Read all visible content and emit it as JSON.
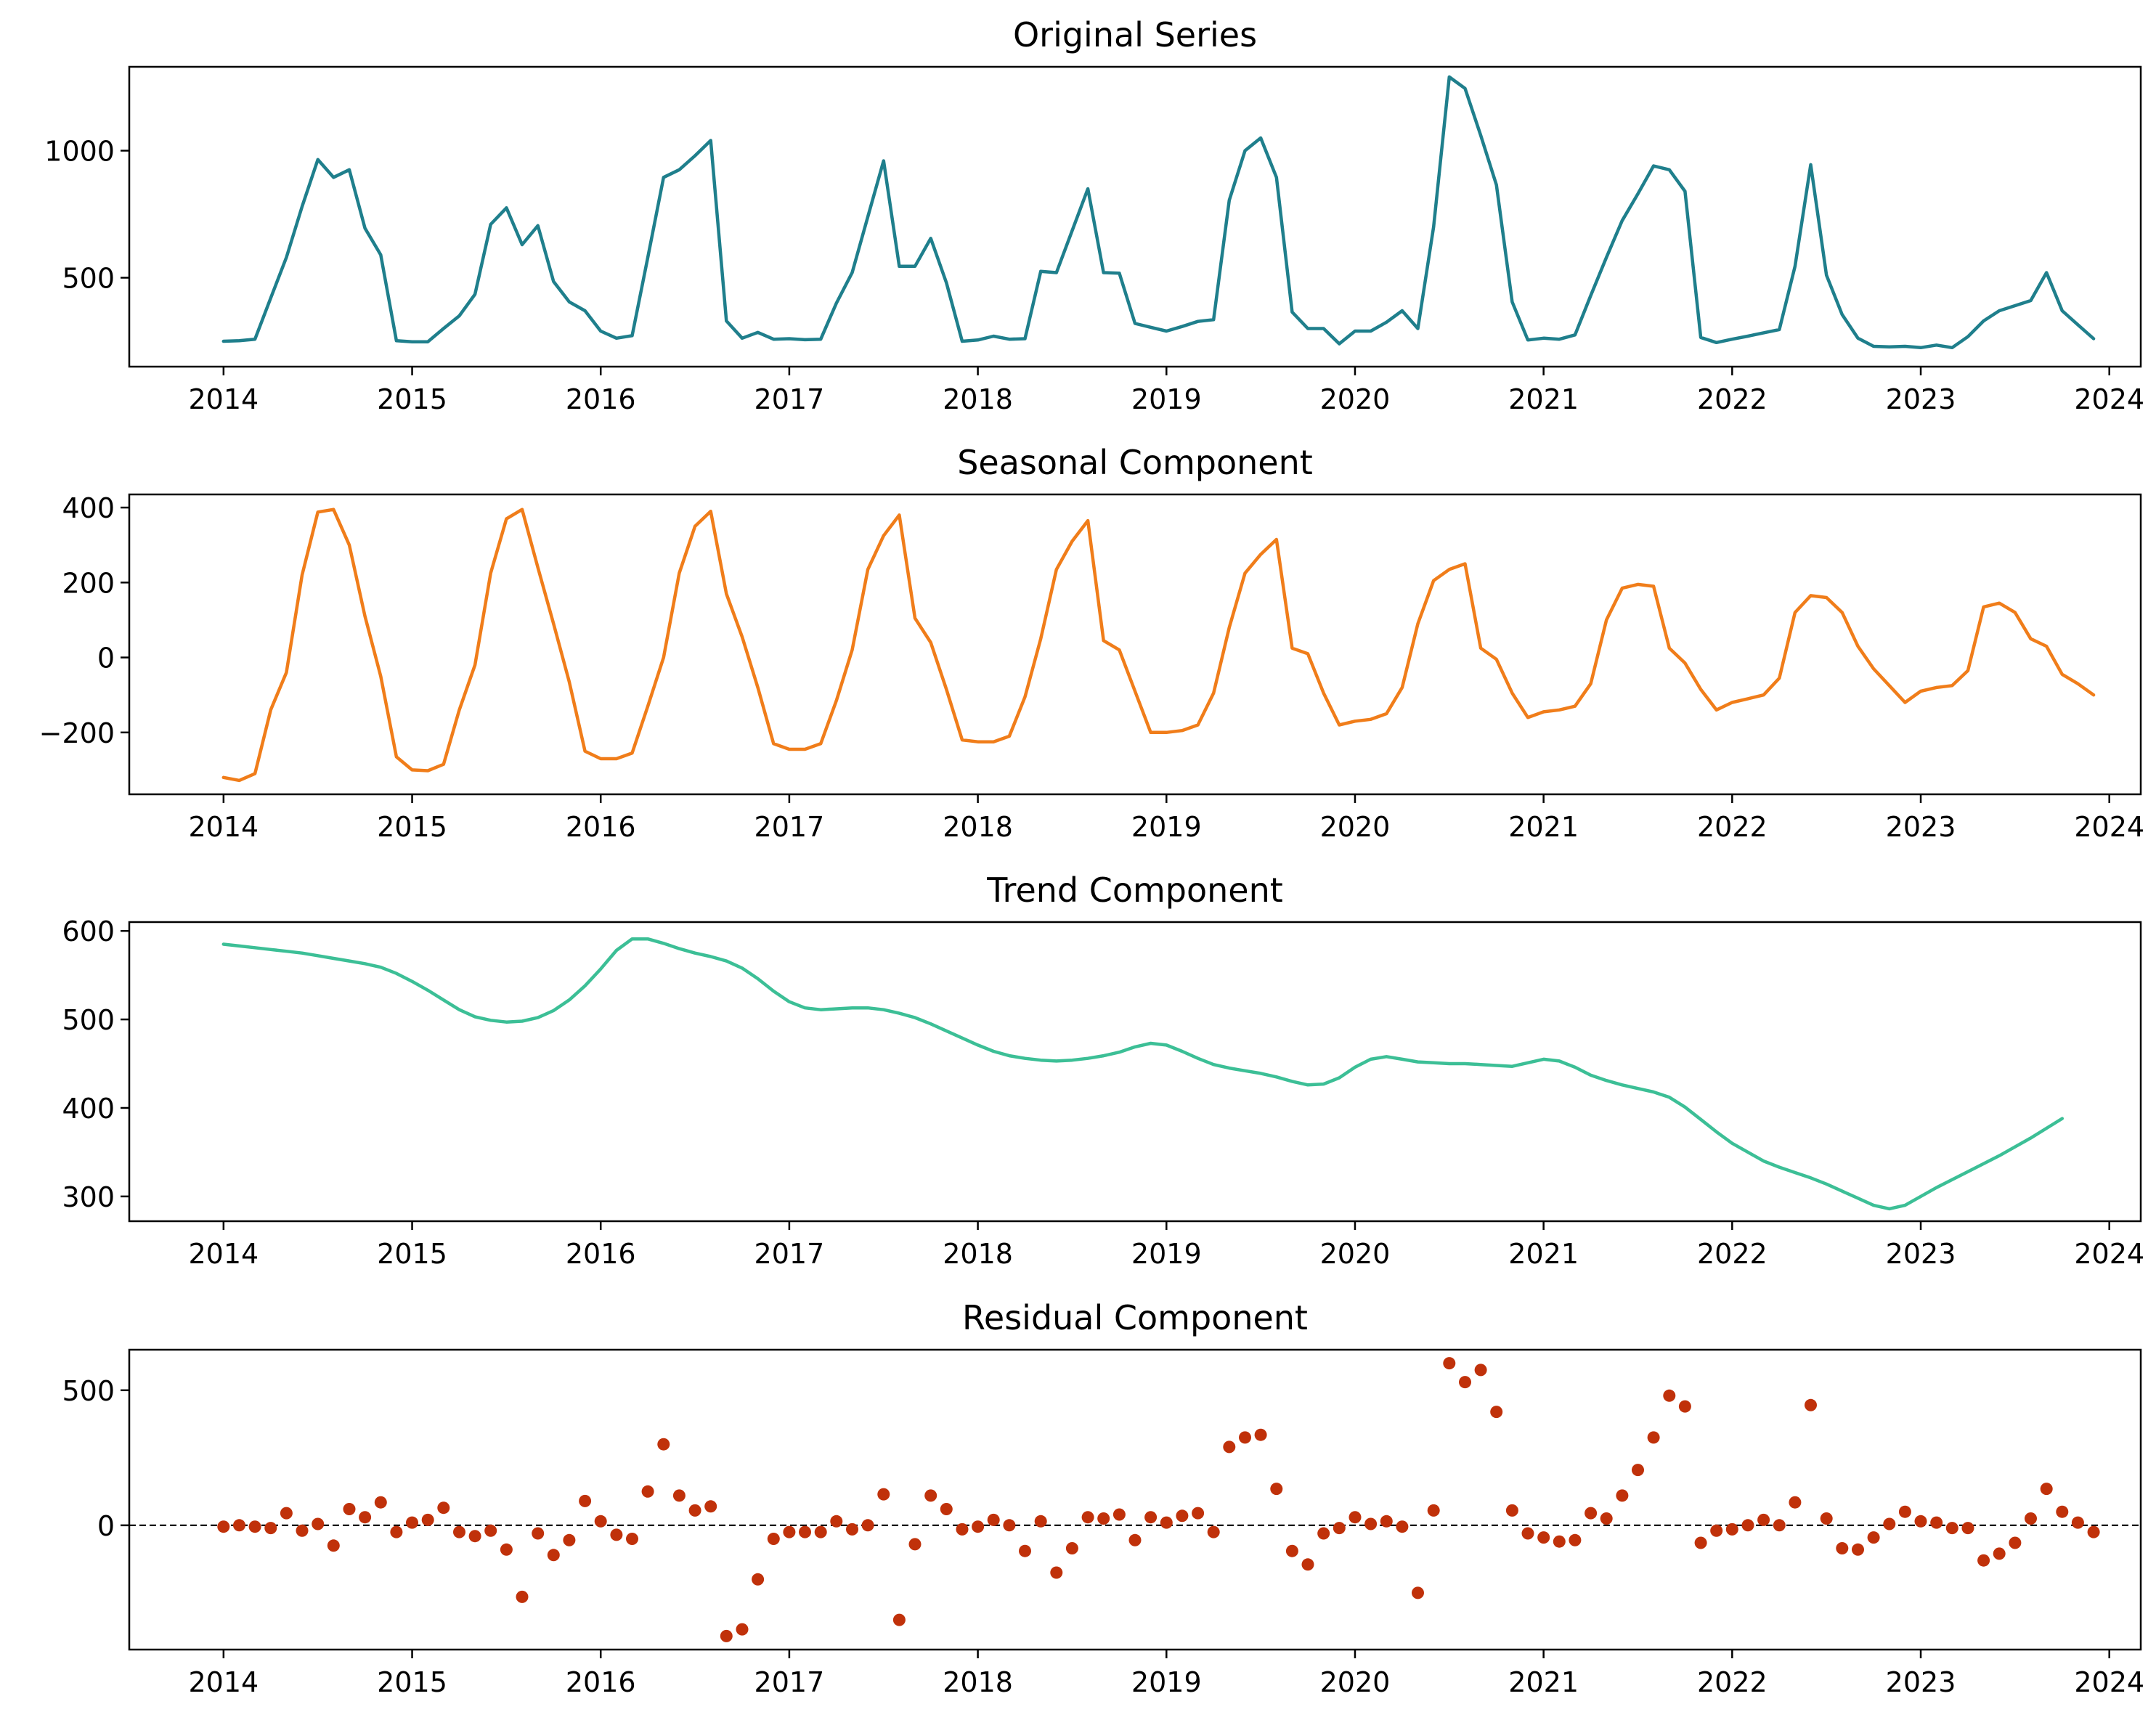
{
  "chart_data": [
    {
      "type": "line",
      "title": "Original Series",
      "xlabel": "",
      "ylabel": "",
      "color": "#1f7f8c",
      "x_start": "2014-01",
      "x_step": "1 month",
      "xlim": [
        "2013-07",
        "2024-03"
      ],
      "ylim": [
        150,
        1330
      ],
      "xticks": [
        "2014",
        "2015",
        "2016",
        "2017",
        "2018",
        "2019",
        "2020",
        "2021",
        "2022",
        "2023",
        "2024"
      ],
      "yticks": [
        500,
        1000
      ],
      "grid": false,
      "values": [
        250,
        252,
        258,
        420,
        580,
        780,
        965,
        895,
        925,
        695,
        590,
        252,
        248,
        248,
        300,
        350,
        435,
        710,
        775,
        630,
        705,
        485,
        405,
        370,
        290,
        262,
        272,
        580,
        895,
        925,
        980,
        1040,
        330,
        262,
        285,
        258,
        260,
        256,
        258,
        400,
        520,
        740,
        960,
        545,
        545,
        655,
        480,
        250,
        255,
        270,
        258,
        260,
        525,
        520,
        685,
        850,
        520,
        518,
        320,
        305,
        290,
        308,
        328,
        335,
        805,
        1000,
        1050,
        895,
        365,
        300,
        300,
        240,
        290,
        290,
        325,
        370,
        300,
        700,
        1290,
        1245,
        1060,
        865,
        405,
        255,
        262,
        258,
        275,
        430,
        580,
        725,
        830,
        940,
        925,
        840,
        265,
        245,
        258,
        270,
        283,
        296,
        545,
        945,
        510,
        355,
        262,
        230,
        228,
        230,
        225,
        235,
        225,
        268,
        330,
        370,
        390,
        410,
        520,
        370,
        315,
        260
      ]
    },
    {
      "type": "line",
      "title": "Seasonal Component",
      "xlabel": "",
      "ylabel": "",
      "color": "#f07d1a",
      "x_start": "2014-01",
      "x_step": "1 month",
      "xlim": [
        "2013-07",
        "2024-03"
      ],
      "ylim": [
        -365,
        435
      ],
      "xticks": [
        "2014",
        "2015",
        "2016",
        "2017",
        "2018",
        "2019",
        "2020",
        "2021",
        "2022",
        "2023",
        "2024"
      ],
      "yticks": [
        -200,
        0,
        200,
        400
      ],
      "grid": false,
      "values": [
        -320,
        -328,
        -310,
        -140,
        -40,
        220,
        388,
        395,
        300,
        110,
        -50,
        -265,
        -300,
        -302,
        -285,
        -140,
        -20,
        225,
        370,
        395,
        240,
        90,
        -65,
        -250,
        -270,
        -270,
        -255,
        -130,
        0,
        225,
        350,
        390,
        170,
        55,
        -80,
        -230,
        -245,
        -245,
        -230,
        -115,
        20,
        235,
        325,
        380,
        105,
        40,
        -85,
        -220,
        -225,
        -225,
        -210,
        -105,
        50,
        235,
        310,
        365,
        45,
        20,
        -90,
        -200,
        -200,
        -195,
        -180,
        -95,
        80,
        225,
        275,
        315,
        25,
        10,
        -95,
        -180,
        -170,
        -165,
        -150,
        -80,
        90,
        205,
        235,
        250,
        25,
        -5,
        -95,
        -160,
        -145,
        -140,
        -130,
        -70,
        100,
        185,
        195,
        190,
        25,
        -15,
        -85,
        -140,
        -120,
        -110,
        -100,
        -55,
        120,
        165,
        160,
        120,
        30,
        -30,
        -75,
        -120,
        -90,
        -80,
        -75,
        -35,
        135,
        145,
        120,
        50,
        30,
        -45,
        -70,
        -100
      ]
    },
    {
      "type": "line",
      "title": "Trend Component",
      "xlabel": "",
      "ylabel": "",
      "color": "#3cbf96",
      "x_start": "2014-01",
      "x_step": "1 month",
      "xlim": [
        "2013-07",
        "2024-03"
      ],
      "ylim": [
        272,
        610
      ],
      "xticks": [
        "2014",
        "2015",
        "2016",
        "2017",
        "2018",
        "2019",
        "2020",
        "2021",
        "2022",
        "2023",
        "2024"
      ],
      "yticks": [
        300,
        400,
        500,
        600
      ],
      "grid": false,
      "values": [
        585,
        583,
        581,
        579,
        577,
        575,
        572,
        569,
        566,
        563,
        559,
        552,
        543,
        533,
        522,
        511,
        503,
        499,
        497,
        498,
        502,
        510,
        522,
        538,
        557,
        578,
        591,
        591,
        586,
        580,
        575,
        571,
        566,
        558,
        546,
        532,
        520,
        513,
        511,
        512,
        513,
        513,
        511,
        507,
        502,
        495,
        487,
        479,
        471,
        464,
        459,
        456,
        454,
        453,
        454,
        456,
        459,
        463,
        469,
        473,
        471,
        464,
        456,
        449,
        445,
        442,
        439,
        435,
        430,
        426,
        427,
        434,
        446,
        455,
        458,
        455,
        452,
        451,
        450,
        450,
        449,
        448,
        447,
        451,
        455,
        453,
        446,
        437,
        431,
        426,
        422,
        418,
        412,
        401,
        387,
        373,
        360,
        350,
        340,
        333,
        327,
        321,
        314,
        306,
        298,
        290,
        286,
        290,
        300,
        310,
        319,
        328,
        337,
        346,
        356,
        366,
        377,
        388
      ]
    },
    {
      "type": "scatter",
      "title": "Residual Component",
      "xlabel": "",
      "ylabel": "",
      "color": "#c0310a",
      "reference_line": {
        "y": 0,
        "style": "dashed",
        "color": "#000000"
      },
      "x_start": "2014-01",
      "x_step": "1 month",
      "xlim": [
        "2013-07",
        "2024-03"
      ],
      "ylim": [
        -460,
        650
      ],
      "xticks": [
        "2014",
        "2015",
        "2016",
        "2017",
        "2018",
        "2019",
        "2020",
        "2021",
        "2022",
        "2023",
        "2024"
      ],
      "yticks": [
        0,
        500
      ],
      "grid": false,
      "values": [
        -5,
        0,
        -5,
        -10,
        45,
        -20,
        5,
        -75,
        60,
        30,
        85,
        -25,
        10,
        20,
        65,
        -25,
        -40,
        -20,
        -90,
        -265,
        -30,
        -110,
        -55,
        90,
        15,
        -35,
        -50,
        125,
        300,
        110,
        55,
        70,
        -410,
        -385,
        -200,
        -50,
        -25,
        -25,
        -25,
        15,
        -15,
        0,
        115,
        -350,
        -70,
        110,
        60,
        -15,
        -5,
        20,
        0,
        -95,
        15,
        -175,
        -85,
        30,
        25,
        40,
        -55,
        30,
        10,
        35,
        45,
        -25,
        290,
        325,
        335,
        135,
        -95,
        -145,
        -30,
        -10,
        30,
        5,
        15,
        -5,
        -250,
        55,
        600,
        530,
        575,
        420,
        55,
        -30,
        -45,
        -60,
        -55,
        45,
        25,
        110,
        205,
        325,
        480,
        440,
        -65,
        -20,
        -15,
        0,
        20,
        0,
        85,
        445,
        25,
        -85,
        -90,
        -45,
        5,
        50,
        15,
        10,
        -10,
        -10,
        -130,
        -105,
        -65,
        25,
        135,
        50,
        10,
        -25
      ]
    }
  ]
}
